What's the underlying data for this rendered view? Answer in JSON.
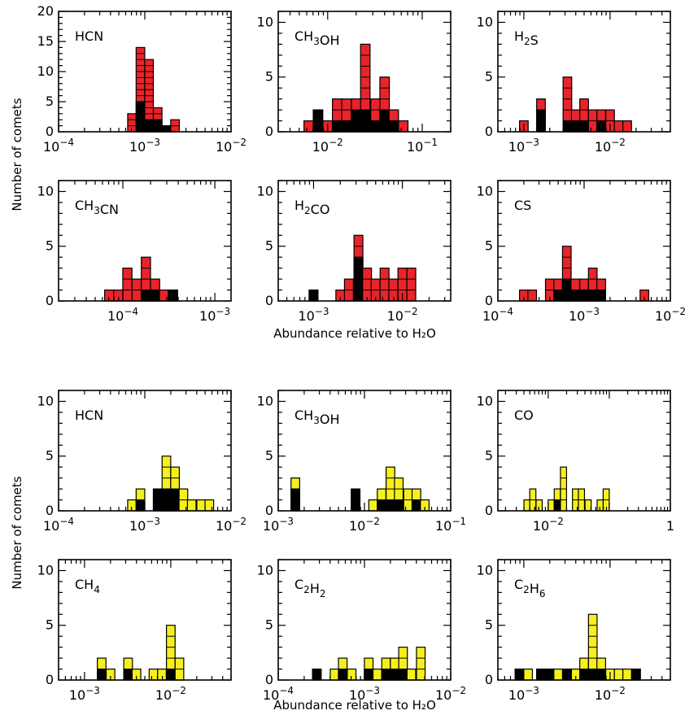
{
  "figure": {
    "top_ylabel": "Number of comets",
    "top_xlabel": "Abundance relative to H₂O",
    "bottom_ylabel": "Number of comets",
    "bottom_xlabel": "Abundance relative to H₂O"
  },
  "colors": {
    "red": "#e8242a",
    "yellow": "#f5ef1e",
    "black": "#000000"
  },
  "chart_data": [
    {
      "type": "bar",
      "title": "HCN",
      "scale": "log",
      "xlim": [
        0.0001,
        0.01
      ],
      "xticks": [
        0.0001,
        0.001,
        0.01
      ],
      "xticklabels": [
        "10⁻⁴",
        "10⁻³",
        "10⁻²"
      ],
      "ylim": [
        0,
        20
      ],
      "yticks": [
        0,
        5,
        10,
        15,
        20
      ],
      "bin_width_dex": 0.1,
      "color": "red",
      "bins": [
        {
          "x": 0.00071,
          "total": 3,
          "black": 0
        },
        {
          "x": 0.00089,
          "total": 14,
          "black": 5
        },
        {
          "x": 0.00112,
          "total": 12,
          "black": 2
        },
        {
          "x": 0.00141,
          "total": 4,
          "black": 2
        },
        {
          "x": 0.00178,
          "total": 1,
          "black": 1
        },
        {
          "x": 0.00224,
          "total": 2,
          "black": 0
        }
      ]
    },
    {
      "type": "bar",
      "title": "CH₃OH",
      "scale": "log",
      "xlim": [
        0.003,
        0.2
      ],
      "xticks": [
        0.01,
        0.1
      ],
      "xticklabels": [
        "10⁻²",
        "10⁻¹"
      ],
      "ylim": [
        0,
        11
      ],
      "yticks": [
        0,
        5,
        10
      ],
      "bin_width_dex": 0.1,
      "color": "red",
      "bins": [
        {
          "x": 0.0063,
          "total": 1,
          "black": 0
        },
        {
          "x": 0.0079,
          "total": 2,
          "black": 2
        },
        {
          "x": 0.01,
          "total": 1,
          "black": 0
        },
        {
          "x": 0.0126,
          "total": 3,
          "black": 1
        },
        {
          "x": 0.0158,
          "total": 3,
          "black": 1
        },
        {
          "x": 0.02,
          "total": 3,
          "black": 2
        },
        {
          "x": 0.025,
          "total": 8,
          "black": 2
        },
        {
          "x": 0.032,
          "total": 3,
          "black": 1
        },
        {
          "x": 0.04,
          "total": 5,
          "black": 2
        },
        {
          "x": 0.05,
          "total": 2,
          "black": 1
        },
        {
          "x": 0.063,
          "total": 1,
          "black": 0
        }
      ]
    },
    {
      "type": "bar",
      "title": "H₂S",
      "scale": "log",
      "xlim": [
        0.0005,
        0.05
      ],
      "xticks": [
        0.001,
        0.01
      ],
      "xticklabels": [
        "10⁻³",
        "10⁻²"
      ],
      "ylim": [
        0,
        11
      ],
      "yticks": [
        0,
        5,
        10
      ],
      "bin_width_dex": 0.1,
      "color": "red",
      "bins": [
        {
          "x": 0.001,
          "total": 1,
          "black": 0
        },
        {
          "x": 0.00158,
          "total": 3,
          "black": 2
        },
        {
          "x": 0.0032,
          "total": 5,
          "black": 1
        },
        {
          "x": 0.004,
          "total": 2,
          "black": 1
        },
        {
          "x": 0.005,
          "total": 3,
          "black": 1
        },
        {
          "x": 0.0063,
          "total": 2,
          "black": 0
        },
        {
          "x": 0.0079,
          "total": 2,
          "black": 1
        },
        {
          "x": 0.01,
          "total": 2,
          "black": 0
        },
        {
          "x": 0.0126,
          "total": 1,
          "black": 0
        },
        {
          "x": 0.0158,
          "total": 1,
          "black": 0
        }
      ]
    },
    {
      "type": "bar",
      "title": "CH₃CN",
      "scale": "log",
      "xlim": [
        2e-05,
        0.0015
      ],
      "xticks": [
        0.0001,
        0.001
      ],
      "xticklabels": [
        "10⁻⁴",
        "10⁻³"
      ],
      "ylim": [
        0,
        11
      ],
      "yticks": [
        0,
        5,
        10
      ],
      "bin_width_dex": 0.1,
      "color": "red",
      "bins": [
        {
          "x": 7.1e-05,
          "total": 1,
          "black": 0
        },
        {
          "x": 8.9e-05,
          "total": 1,
          "black": 0
        },
        {
          "x": 0.000112,
          "total": 3,
          "black": 0
        },
        {
          "x": 0.000141,
          "total": 2,
          "black": 0
        },
        {
          "x": 0.000178,
          "total": 4,
          "black": 1
        },
        {
          "x": 0.000224,
          "total": 2,
          "black": 1
        },
        {
          "x": 0.00028,
          "total": 1,
          "black": 0
        },
        {
          "x": 0.00035,
          "total": 1,
          "black": 1
        }
      ]
    },
    {
      "type": "bar",
      "title": "H₂CO",
      "scale": "log",
      "xlim": [
        0.0004,
        0.035
      ],
      "xticks": [
        0.001,
        0.01
      ],
      "xticklabels": [
        "10⁻³",
        "10⁻²"
      ],
      "ylim": [
        0,
        11
      ],
      "yticks": [
        0,
        5,
        10
      ],
      "bin_width_dex": 0.1,
      "color": "red",
      "bins": [
        {
          "x": 0.001,
          "total": 1,
          "black": 1
        },
        {
          "x": 0.002,
          "total": 1,
          "black": 0
        },
        {
          "x": 0.0025,
          "total": 2,
          "black": 0
        },
        {
          "x": 0.0032,
          "total": 6,
          "black": 4
        },
        {
          "x": 0.004,
          "total": 3,
          "black": 0
        },
        {
          "x": 0.005,
          "total": 2,
          "black": 0
        },
        {
          "x": 0.0063,
          "total": 3,
          "black": 0
        },
        {
          "x": 0.0079,
          "total": 2,
          "black": 0
        },
        {
          "x": 0.01,
          "total": 3,
          "black": 0
        },
        {
          "x": 0.0126,
          "total": 3,
          "black": 0
        }
      ]
    },
    {
      "type": "bar",
      "title": "CS",
      "scale": "log",
      "xlim": [
        0.0001,
        0.01
      ],
      "xticks": [
        0.0001,
        0.001,
        0.01
      ],
      "xticklabels": [
        "10⁻⁴",
        "10⁻³",
        "10⁻²"
      ],
      "ylim": [
        0,
        11
      ],
      "yticks": [
        0,
        5,
        10
      ],
      "bin_width_dex": 0.1,
      "color": "red",
      "bins": [
        {
          "x": 0.0002,
          "total": 1,
          "black": 0
        },
        {
          "x": 0.00025,
          "total": 1,
          "black": 0
        },
        {
          "x": 0.0004,
          "total": 2,
          "black": 0
        },
        {
          "x": 0.0005,
          "total": 2,
          "black": 1
        },
        {
          "x": 0.00063,
          "total": 5,
          "black": 2
        },
        {
          "x": 0.00079,
          "total": 2,
          "black": 1
        },
        {
          "x": 0.001,
          "total": 2,
          "black": 1
        },
        {
          "x": 0.00126,
          "total": 3,
          "black": 1
        },
        {
          "x": 0.00158,
          "total": 2,
          "black": 1
        },
        {
          "x": 0.005,
          "total": 1,
          "black": 0
        }
      ]
    },
    {
      "type": "bar",
      "title": "HCN",
      "scale": "log",
      "xlim": [
        0.0001,
        0.01
      ],
      "xticks": [
        0.0001,
        0.001,
        0.01
      ],
      "xticklabels": [
        "10⁻⁴",
        "10⁻³",
        "10⁻²"
      ],
      "ylim": [
        0,
        11
      ],
      "yticks": [
        0,
        5,
        10
      ],
      "bin_width_dex": 0.1,
      "color": "yellow",
      "bins": [
        {
          "x": 0.00071,
          "total": 1,
          "black": 0
        },
        {
          "x": 0.00089,
          "total": 2,
          "black": 1
        },
        {
          "x": 0.00112,
          "total": 0,
          "black": 0
        },
        {
          "x": 0.00141,
          "total": 2,
          "black": 2
        },
        {
          "x": 0.00178,
          "total": 5,
          "black": 2
        },
        {
          "x": 0.00224,
          "total": 4,
          "black": 2
        },
        {
          "x": 0.0028,
          "total": 2,
          "black": 0
        },
        {
          "x": 0.0035,
          "total": 1,
          "black": 0
        },
        {
          "x": 0.0045,
          "total": 1,
          "black": 0
        },
        {
          "x": 0.0056,
          "total": 1,
          "black": 0
        }
      ]
    },
    {
      "type": "bar",
      "title": "CH₃OH",
      "scale": "log",
      "xlim": [
        0.001,
        0.1
      ],
      "xticks": [
        0.001,
        0.01,
        0.1
      ],
      "xticklabels": [
        "10⁻³",
        "10⁻²",
        "10⁻¹"
      ],
      "ylim": [
        0,
        11
      ],
      "yticks": [
        0,
        5,
        10
      ],
      "bin_width_dex": 0.1,
      "color": "yellow",
      "bins": [
        {
          "x": 0.00158,
          "total": 3,
          "black": 2
        },
        {
          "x": 0.0079,
          "total": 2,
          "black": 2
        },
        {
          "x": 0.0126,
          "total": 1,
          "black": 0
        },
        {
          "x": 0.0158,
          "total": 2,
          "black": 1
        },
        {
          "x": 0.02,
          "total": 4,
          "black": 1
        },
        {
          "x": 0.025,
          "total": 3,
          "black": 1
        },
        {
          "x": 0.032,
          "total": 2,
          "black": 0
        },
        {
          "x": 0.04,
          "total": 2,
          "black": 1
        },
        {
          "x": 0.05,
          "total": 1,
          "black": 0
        }
      ]
    },
    {
      "type": "bar",
      "title": "CO",
      "scale": "log",
      "xlim": [
        0.0015,
        1
      ],
      "xticks": [
        0.01,
        1
      ],
      "xticklabels": [
        "10⁻²",
        "1"
      ],
      "ylim": [
        0,
        11
      ],
      "yticks": [
        0,
        5,
        10
      ],
      "bin_width_dex": 0.1,
      "color": "yellow",
      "bins": [
        {
          "x": 0.0045,
          "total": 1,
          "black": 0
        },
        {
          "x": 0.0056,
          "total": 2,
          "black": 0
        },
        {
          "x": 0.0071,
          "total": 1,
          "black": 0
        },
        {
          "x": 0.0112,
          "total": 1,
          "black": 0
        },
        {
          "x": 0.0141,
          "total": 2,
          "black": 1
        },
        {
          "x": 0.0178,
          "total": 4,
          "black": 0
        },
        {
          "x": 0.028,
          "total": 2,
          "black": 0
        },
        {
          "x": 0.035,
          "total": 2,
          "black": 0
        },
        {
          "x": 0.045,
          "total": 1,
          "black": 0
        },
        {
          "x": 0.071,
          "total": 1,
          "black": 0
        },
        {
          "x": 0.089,
          "total": 2,
          "black": 0
        }
      ]
    },
    {
      "type": "bar",
      "title": "CH₄",
      "scale": "log",
      "xlim": [
        0.0005,
        0.05
      ],
      "xticks": [
        0.001,
        0.01
      ],
      "xticklabels": [
        "10⁻³",
        "10⁻²"
      ],
      "ylim": [
        0,
        11
      ],
      "yticks": [
        0,
        5,
        10
      ],
      "bin_width_dex": 0.1,
      "color": "yellow",
      "bins": [
        {
          "x": 0.00158,
          "total": 2,
          "black": 1
        },
        {
          "x": 0.002,
          "total": 1,
          "black": 0
        },
        {
          "x": 0.0032,
          "total": 2,
          "black": 1
        },
        {
          "x": 0.004,
          "total": 1,
          "black": 0
        },
        {
          "x": 0.0063,
          "total": 1,
          "black": 0
        },
        {
          "x": 0.0079,
          "total": 1,
          "black": 0
        },
        {
          "x": 0.01,
          "total": 5,
          "black": 1
        },
        {
          "x": 0.0126,
          "total": 2,
          "black": 0
        }
      ]
    },
    {
      "type": "bar",
      "title": "C₂H₂",
      "scale": "log",
      "xlim": [
        0.0001,
        0.01
      ],
      "xticks": [
        0.0001,
        0.001,
        0.01
      ],
      "xticklabels": [
        "10⁻⁴",
        "10⁻³",
        "10⁻²"
      ],
      "ylim": [
        0,
        11
      ],
      "yticks": [
        0,
        5,
        10
      ],
      "bin_width_dex": 0.1,
      "color": "yellow",
      "bins": [
        {
          "x": 0.00028,
          "total": 1,
          "black": 1
        },
        {
          "x": 0.00045,
          "total": 1,
          "black": 0
        },
        {
          "x": 0.00056,
          "total": 2,
          "black": 1
        },
        {
          "x": 0.00071,
          "total": 1,
          "black": 0
        },
        {
          "x": 0.00112,
          "total": 2,
          "black": 1
        },
        {
          "x": 0.00141,
          "total": 1,
          "black": 0
        },
        {
          "x": 0.00178,
          "total": 2,
          "black": 1
        },
        {
          "x": 0.00224,
          "total": 2,
          "black": 1
        },
        {
          "x": 0.0028,
          "total": 3,
          "black": 1
        },
        {
          "x": 0.0035,
          "total": 1,
          "black": 0
        },
        {
          "x": 0.0045,
          "total": 3,
          "black": 0
        }
      ]
    },
    {
      "type": "bar",
      "title": "C₂H₆",
      "scale": "log",
      "xlim": [
        0.0005,
        0.05
      ],
      "xticks": [
        0.001,
        0.01
      ],
      "xticklabels": [
        "10⁻³",
        "10⁻²"
      ],
      "ylim": [
        0,
        11
      ],
      "yticks": [
        0,
        5,
        10
      ],
      "bin_width_dex": 0.1,
      "color": "yellow",
      "bins": [
        {
          "x": 0.00089,
          "total": 1,
          "black": 1
        },
        {
          "x": 0.00112,
          "total": 1,
          "black": 0
        },
        {
          "x": 0.00158,
          "total": 1,
          "black": 1
        },
        {
          "x": 0.002,
          "total": 1,
          "black": 1
        },
        {
          "x": 0.0025,
          "total": 1,
          "black": 0
        },
        {
          "x": 0.0032,
          "total": 1,
          "black": 1
        },
        {
          "x": 0.004,
          "total": 1,
          "black": 0
        },
        {
          "x": 0.005,
          "total": 2,
          "black": 1
        },
        {
          "x": 0.0063,
          "total": 6,
          "black": 1
        },
        {
          "x": 0.0079,
          "total": 2,
          "black": 1
        },
        {
          "x": 0.01,
          "total": 1,
          "black": 0
        },
        {
          "x": 0.0126,
          "total": 1,
          "black": 0
        },
        {
          "x": 0.0158,
          "total": 1,
          "black": 0
        },
        {
          "x": 0.02,
          "total": 1,
          "black": 1
        }
      ]
    }
  ]
}
